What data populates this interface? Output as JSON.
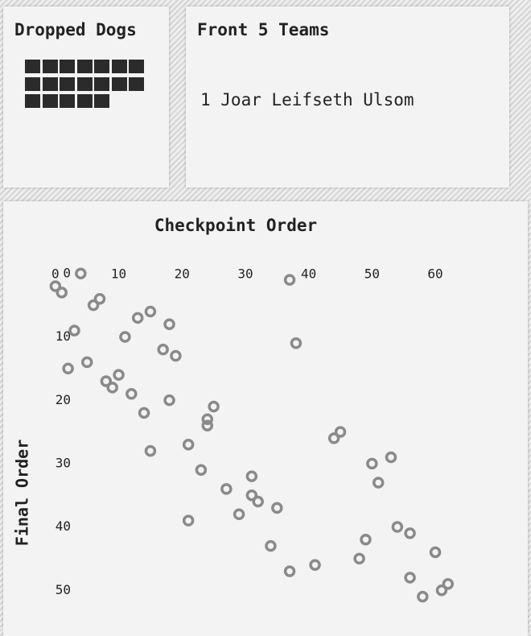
{
  "dropped_dogs": {
    "title": "Dropped Dogs",
    "count": 19
  },
  "front_teams": {
    "title": "Front 5 Teams",
    "items": [
      "1 Joar Leifseth Ulsom"
    ]
  },
  "chart_data": {
    "type": "scatter",
    "title": "Checkpoint Order",
    "y_label": "Final Order",
    "color": "#8a8a8a",
    "x": [
      4,
      0,
      1,
      7,
      6,
      15,
      13,
      18,
      3,
      11,
      37,
      38,
      17,
      19,
      5,
      2,
      10,
      8,
      9,
      12,
      18,
      25,
      14,
      24,
      24,
      45,
      44,
      21,
      15,
      53,
      50,
      23,
      31,
      51,
      27,
      31,
      32,
      35,
      29,
      21,
      54,
      56,
      49,
      34,
      60,
      48,
      41,
      37,
      56,
      62,
      61,
      58
    ],
    "values": [
      1,
      3,
      4,
      5,
      6,
      7,
      8,
      9,
      10,
      11,
      2,
      12,
      13,
      14,
      15,
      16,
      17,
      18,
      19,
      20,
      21,
      22,
      23,
      24,
      25,
      26,
      27,
      28,
      29,
      30,
      31,
      32,
      33,
      34,
      35,
      36,
      37,
      38,
      39,
      40,
      41,
      42,
      43,
      44,
      45,
      46,
      47,
      48,
      49,
      50,
      51,
      52
    ],
    "xlim": [
      -1,
      63
    ],
    "ylim": [
      -1,
      53
    ],
    "y_inverted": true,
    "xticks": [
      0,
      10,
      20,
      30,
      40,
      50,
      60
    ],
    "yticks": [
      0,
      10,
      20,
      30,
      40,
      50
    ]
  }
}
